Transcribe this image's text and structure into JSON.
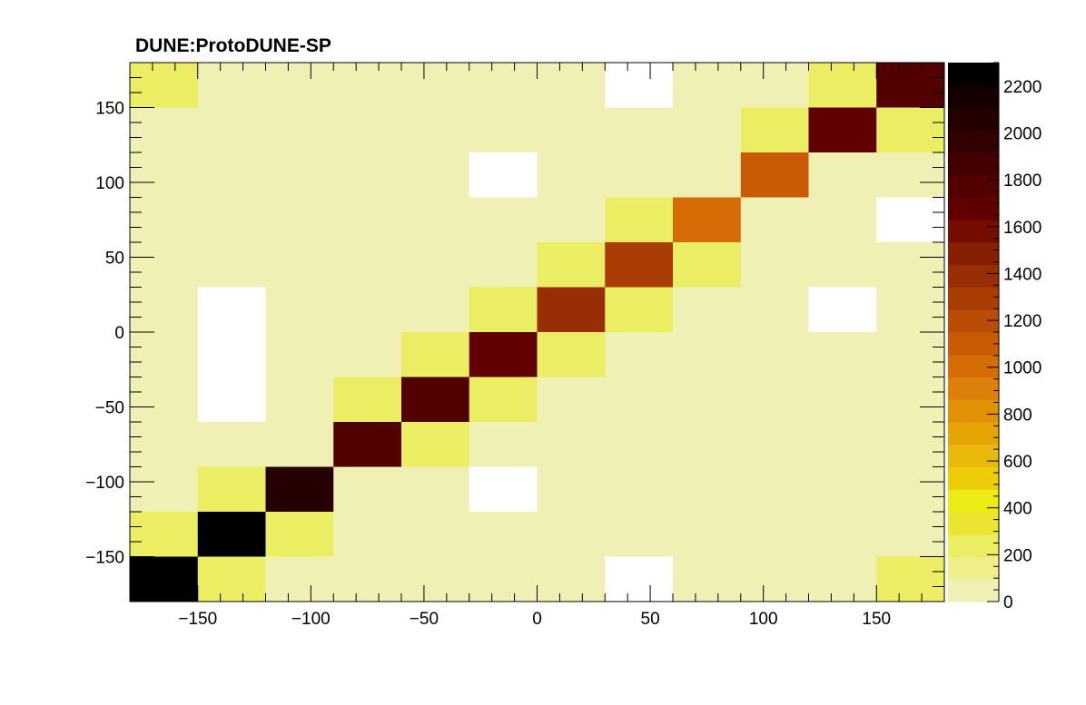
{
  "chart_data": {
    "type": "heatmap",
    "title": "DUNE:ProtoDUNE-SP",
    "xlabel": "",
    "ylabel": "",
    "xlim": [
      -180,
      180
    ],
    "ylim": [
      -180,
      180
    ],
    "x_bin_edges": [
      -180,
      -150,
      -120,
      -90,
      -60,
      -30,
      0,
      30,
      60,
      90,
      120,
      150,
      180
    ],
    "y_bin_edges": [
      -180,
      -150,
      -120,
      -90,
      -60,
      -30,
      0,
      30,
      60,
      90,
      120,
      150,
      180
    ],
    "x_ticks": [
      -150,
      -100,
      -50,
      0,
      50,
      100,
      150
    ],
    "y_ticks": [
      -150,
      -100,
      -50,
      0,
      50,
      100,
      150
    ],
    "x_tick_labels": [
      "−150",
      "−100",
      "−50",
      "0",
      "50",
      "100",
      "150"
    ],
    "y_tick_labels": [
      "−150",
      "−100",
      "−50",
      "0",
      "50",
      "100",
      "150"
    ],
    "z_range": [
      0,
      2300
    ],
    "colorbar_ticks": [
      0,
      200,
      400,
      600,
      800,
      1000,
      1200,
      1400,
      1600,
      1800,
      2000,
      2200
    ],
    "colorbar_tick_labels": [
      "0",
      "200",
      "400",
      "600",
      "800",
      "1000",
      "1200",
      "1400",
      "1600",
      "1800",
      "2000",
      "2200"
    ],
    "palette": [
      "#f0efb4",
      "#eeee8a",
      "#ebed62",
      "#ece52f",
      "#edeb15",
      "#eccd08",
      "#e8b90a",
      "#e5a505",
      "#e19204",
      "#dd800a",
      "#d56c06",
      "#c95a06",
      "#bb4c06",
      "#aa3c05",
      "#992d05",
      "#862001",
      "#750e01",
      "#610000",
      "#520000",
      "#420000",
      "#320000",
      "#240000",
      "#150000",
      "#000000"
    ],
    "empty_color": "#ffffff",
    "z_by_row_from_top": [
      [
        230,
        10,
        10,
        10,
        10,
        10,
        10,
        null,
        10,
        10,
        230,
        1800
      ],
      [
        10,
        10,
        10,
        10,
        10,
        10,
        10,
        10,
        10,
        230,
        1650,
        250
      ],
      [
        10,
        10,
        10,
        10,
        10,
        null,
        10,
        10,
        10,
        1100,
        10,
        10
      ],
      [
        10,
        10,
        10,
        10,
        10,
        10,
        10,
        230,
        1000,
        10,
        10,
        null
      ],
      [
        10,
        10,
        10,
        10,
        10,
        10,
        230,
        1250,
        230,
        10,
        10,
        10
      ],
      [
        10,
        null,
        10,
        10,
        10,
        250,
        1350,
        230,
        10,
        10,
        null,
        10
      ],
      [
        10,
        null,
        10,
        10,
        230,
        1650,
        230,
        10,
        10,
        10,
        10,
        10
      ],
      [
        10,
        null,
        10,
        230,
        1750,
        230,
        10,
        10,
        10,
        10,
        10,
        10
      ],
      [
        10,
        10,
        10,
        1750,
        230,
        10,
        10,
        10,
        10,
        10,
        10,
        10
      ],
      [
        10,
        230,
        2050,
        10,
        10,
        null,
        10,
        10,
        10,
        10,
        10,
        10
      ],
      [
        250,
        2300,
        250,
        10,
        10,
        10,
        10,
        10,
        10,
        10,
        10,
        10
      ],
      [
        2300,
        230,
        10,
        10,
        10,
        10,
        10,
        null,
        10,
        10,
        10,
        200
      ]
    ]
  }
}
